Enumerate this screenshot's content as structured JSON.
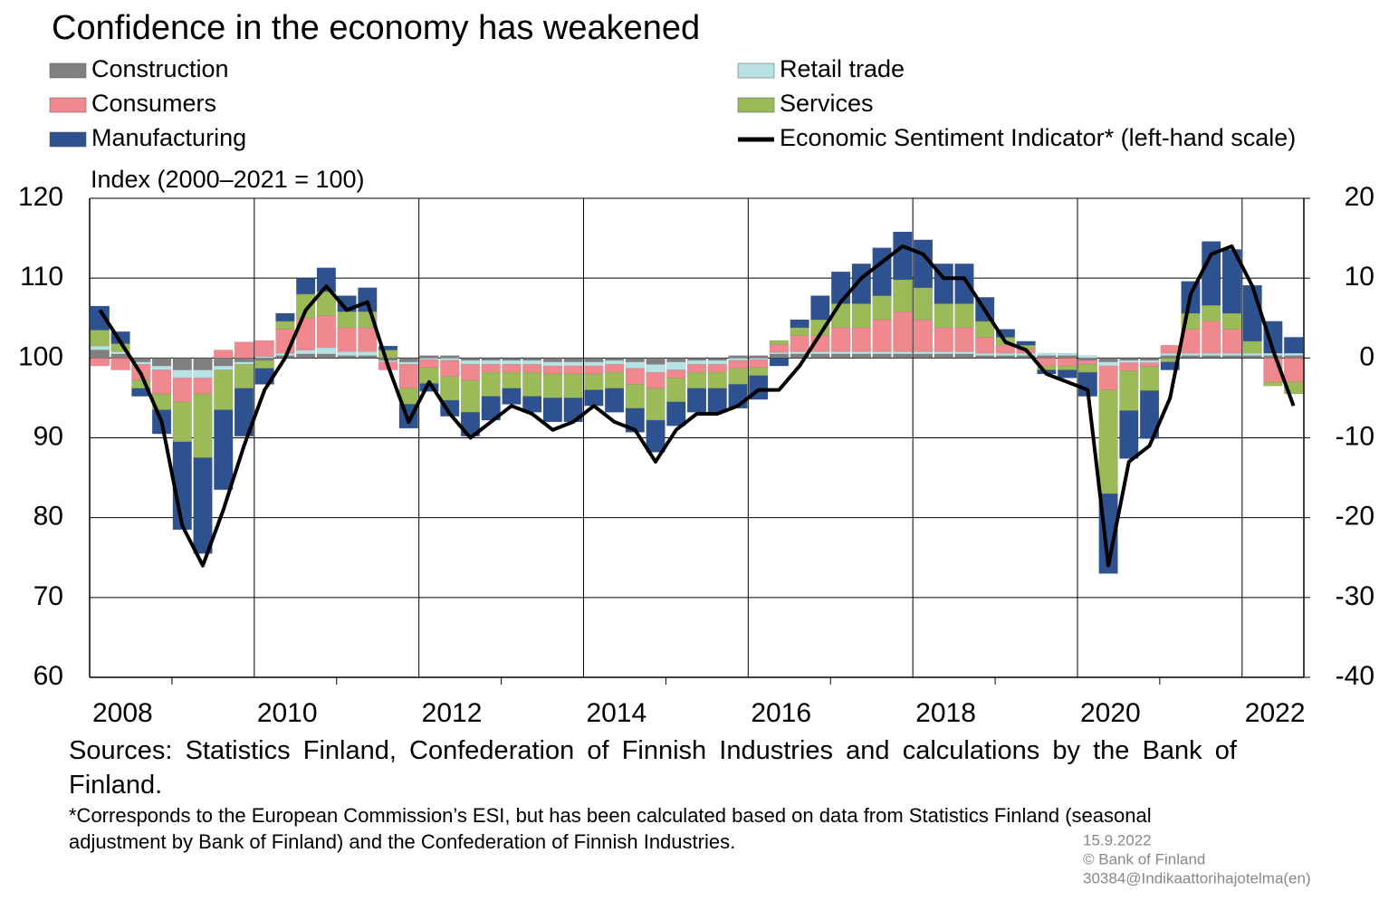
{
  "chart_data": {
    "type": "bar-line",
    "title": "Confidence in the economy has weakened",
    "y_label": "Index (2000–2021 = 100)",
    "sources": "Sources: Statistics Finland, Confederation of Finnish Industries and calculations by the Bank of Finland.",
    "footnote": "*Corresponds to the European Commission’s ESI, but has been calculated based on data from Statistics Finland (seasonal adjustment by Bank of Finland) and the Confederation of Finnish Industries.",
    "date": "15.9.2022",
    "copyright": "© Bank of Finland",
    "code": "30384@Indikaattorihajotelma(en)",
    "categories": [
      "2008",
      null,
      null,
      null,
      null,
      null,
      null,
      null,
      "2010",
      null,
      null,
      null,
      null,
      null,
      null,
      null,
      "2012",
      null,
      null,
      null,
      null,
      null,
      null,
      null,
      "2014",
      null,
      null,
      null,
      null,
      null,
      null,
      null,
      "2016",
      null,
      null,
      null,
      null,
      null,
      null,
      null,
      "2018",
      null,
      null,
      null,
      null,
      null,
      null,
      null,
      "2020",
      null,
      null,
      null,
      null,
      null,
      null,
      null,
      "2022",
      null,
      null
    ],
    "ylim": [
      60,
      120
    ],
    "yticks": [
      60,
      70,
      80,
      90,
      100,
      110,
      120
    ],
    "y2lim": [
      -40,
      20
    ],
    "y2ticks": [
      -40,
      -30,
      -20,
      -10,
      0,
      10,
      20
    ],
    "grid": true,
    "series": [
      {
        "name": "Construction",
        "color": "#808080",
        "axis": "y2",
        "values": [
          1,
          0.5,
          -0.5,
          -1,
          -1.5,
          -1.5,
          -1,
          -0.5,
          -0.3,
          0.3,
          0.5,
          0.5,
          0.3,
          0.3,
          -0.3,
          -0.5,
          0.3,
          0.3,
          -0.3,
          -0.3,
          -0.3,
          -0.3,
          -0.5,
          -0.5,
          -0.5,
          -0.3,
          -0.5,
          -0.8,
          -0.5,
          -0.3,
          -0.3,
          0.3,
          0.3,
          0.5,
          0.5,
          0.5,
          0.5,
          0.5,
          0.5,
          0.5,
          0.5,
          0.5,
          0.5,
          0.3,
          0.3,
          0.3,
          0.3,
          0.3,
          -0.3,
          -0.5,
          -0.3,
          -0.3,
          0.3,
          0.3,
          0.3,
          0.3,
          0.3,
          0.3,
          0.3
        ]
      },
      {
        "name": "Retail trade",
        "color": "#b7e1e3",
        "axis": "y2",
        "values": [
          0.5,
          0.3,
          -0.3,
          -0.5,
          -1,
          -1,
          -0.5,
          -0.3,
          0.2,
          0.3,
          0.5,
          0.8,
          0.5,
          0.5,
          -0.2,
          -0.3,
          -0.2,
          -0.3,
          -0.5,
          -0.5,
          -0.5,
          -0.5,
          -0.5,
          -0.5,
          -0.5,
          -0.5,
          -0.8,
          -1,
          -1,
          -0.5,
          -0.5,
          -0.3,
          -0.2,
          0.2,
          0.3,
          0.3,
          0.3,
          0.3,
          0.3,
          0.3,
          0.3,
          0.3,
          0.3,
          0.3,
          0.3,
          0.3,
          0.3,
          0.3,
          0.3,
          -0.5,
          -0.3,
          -0.3,
          0.3,
          0.3,
          0.3,
          0.3,
          0.3,
          0.3,
          0.3
        ]
      },
      {
        "name": "Consumers",
        "color": "#f0888f",
        "axis": "y2",
        "values": [
          -1,
          -1.5,
          -2,
          -3,
          -3,
          -2,
          1,
          2,
          2,
          3,
          4,
          4,
          3,
          3,
          -1,
          -3,
          -1,
          -2,
          -2,
          -1,
          -1,
          -1,
          -1,
          -1,
          -1,
          -1,
          -2,
          -2,
          -1,
          -1,
          -1,
          -1,
          -1,
          1,
          2,
          2,
          3,
          3,
          4,
          5,
          4,
          3,
          3,
          2,
          1,
          0.5,
          -1,
          -1,
          -0.5,
          -3,
          -1,
          -0.5,
          1,
          3,
          4,
          3,
          0,
          -3,
          -3
        ]
      },
      {
        "name": "Services",
        "color": "#9bbb59",
        "axis": "y2",
        "values": [
          2,
          1,
          -1,
          -2,
          -5,
          -8,
          -5,
          -3,
          -1,
          1,
          3,
          3,
          2,
          2,
          1,
          -2,
          -2,
          -3,
          -4,
          -3,
          -2,
          -3,
          -3,
          -3,
          -2,
          -2,
          -3,
          -4,
          -3,
          -2,
          -2,
          -2,
          -1,
          0.5,
          1,
          2,
          3,
          3,
          3,
          4,
          4,
          3,
          3,
          2,
          1,
          0.5,
          -0.5,
          -0.5,
          -1,
          -13,
          -5,
          -3,
          -0.5,
          2,
          2,
          2,
          1.5,
          -0.5,
          -1.5
        ]
      },
      {
        "name": "Manufacturing",
        "color": "#2e528f",
        "axis": "y2",
        "values": [
          3,
          1.5,
          -1,
          -3,
          -11,
          -12,
          -10,
          -6,
          -2,
          1,
          2,
          3,
          2,
          3,
          0.5,
          -3,
          -1,
          -2,
          -3,
          -3,
          -2,
          -2,
          -3,
          -3,
          -2,
          -3,
          -3,
          -4,
          -3,
          -3,
          -3,
          -3,
          -3,
          -1,
          1,
          3,
          4,
          5,
          6,
          6,
          6,
          5,
          5,
          3,
          1,
          0.5,
          -0.5,
          -1,
          -3,
          -10,
          -6,
          -6,
          -1,
          4,
          8,
          8,
          7,
          4,
          2
        ]
      },
      {
        "name": "Economic Sentiment Indicator* (left-hand scale)",
        "color": "#000000",
        "axis": "y",
        "kind": "line",
        "values": [
          106,
          102,
          98,
          92,
          79,
          74,
          81,
          89,
          96,
          100,
          106,
          109,
          106,
          107,
          99,
          92,
          97,
          93,
          90,
          92,
          94,
          93,
          91,
          92,
          94,
          92,
          91,
          87,
          91,
          93,
          93,
          94,
          96,
          96,
          99,
          103,
          107,
          110,
          112,
          114,
          113,
          110,
          110,
          106,
          102,
          101,
          98,
          97,
          96,
          74,
          87,
          89,
          95,
          108,
          113,
          114,
          109,
          101,
          94
        ]
      }
    ]
  }
}
